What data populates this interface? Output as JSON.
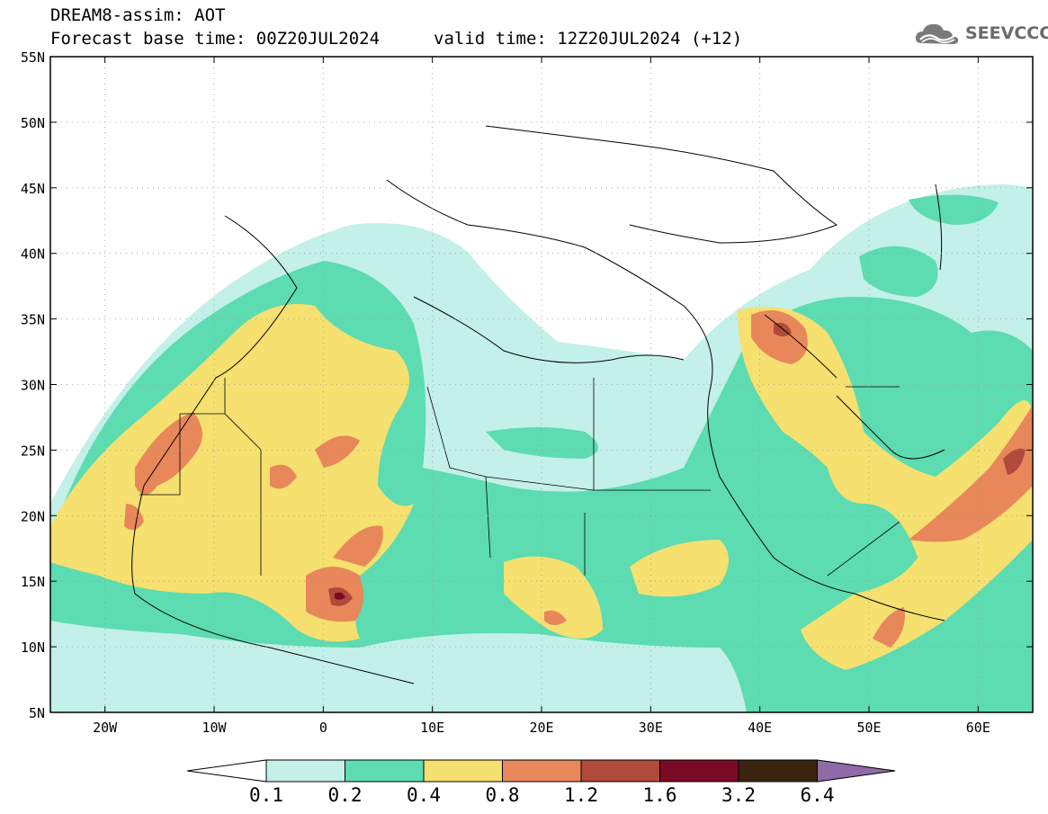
{
  "header": {
    "title": "DREAM8-assim: AOT",
    "base_time": "Forecast base time: 00Z20JUL2024",
    "valid_time": "valid time: 12Z20JUL2024 (+12)",
    "logo_text": "SEEVCCC",
    "logo_icon": "cloud-logo-icon"
  },
  "map": {
    "lon_range": [
      -25,
      65
    ],
    "lat_range": [
      5,
      55
    ],
    "lat_labels": [
      "55N",
      "50N",
      "45N",
      "40N",
      "35N",
      "30N",
      "25N",
      "20N",
      "15N",
      "10N",
      "5N"
    ],
    "lat_values": [
      55,
      50,
      45,
      40,
      35,
      30,
      25,
      20,
      15,
      10,
      5
    ],
    "lon_labels": [
      "20W",
      "10W",
      "0",
      "10E",
      "20E",
      "30E",
      "40E",
      "50E",
      "60E"
    ],
    "lon_values": [
      -20,
      -10,
      0,
      10,
      20,
      30,
      40,
      50,
      60
    ],
    "grid": "dotted"
  },
  "colorbar": {
    "colors": [
      "#ffffff",
      "#c3f0e9",
      "#5cdcb0",
      "#f5e070",
      "#e8875a",
      "#b04a3a",
      "#7a0a25",
      "#3a2410",
      "#8e6aa6"
    ],
    "labels": [
      "0.1",
      "0.2",
      "0.4",
      "0.8",
      "1.2",
      "1.6",
      "3.2",
      "6.4"
    ]
  }
}
